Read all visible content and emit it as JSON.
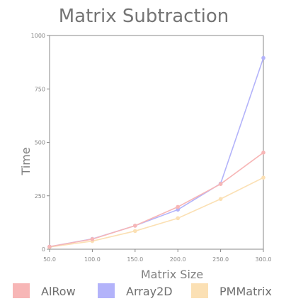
{
  "chart_data": {
    "type": "line",
    "title": "Matrix Subtraction",
    "xlabel": "Matrix Size",
    "ylabel": "Time",
    "x": [
      50,
      100,
      150,
      200,
      250,
      300
    ],
    "x_tick_labels": [
      "50.0",
      "100.0",
      "150.0",
      "200.0",
      "250.0",
      "300.0"
    ],
    "xlim": [
      50,
      300
    ],
    "y_tick_labels": [
      "0",
      "250",
      "500",
      "750",
      "1000"
    ],
    "y_ticks": [
      0,
      250,
      500,
      750,
      1000
    ],
    "ylim": [
      0,
      1000
    ],
    "grid": false,
    "legend_position": "bottom",
    "series": [
      {
        "name": "AlRow",
        "color": "#f7b6b6",
        "values": [
          12,
          47,
          110,
          198,
          305,
          452
        ]
      },
      {
        "name": "Array2D",
        "color": "#b3b3fa",
        "values": [
          12,
          48,
          110,
          185,
          307,
          895
        ]
      },
      {
        "name": "PMMatrix",
        "color": "#fbe0b4",
        "values": [
          10,
          38,
          85,
          145,
          235,
          335
        ]
      }
    ]
  }
}
